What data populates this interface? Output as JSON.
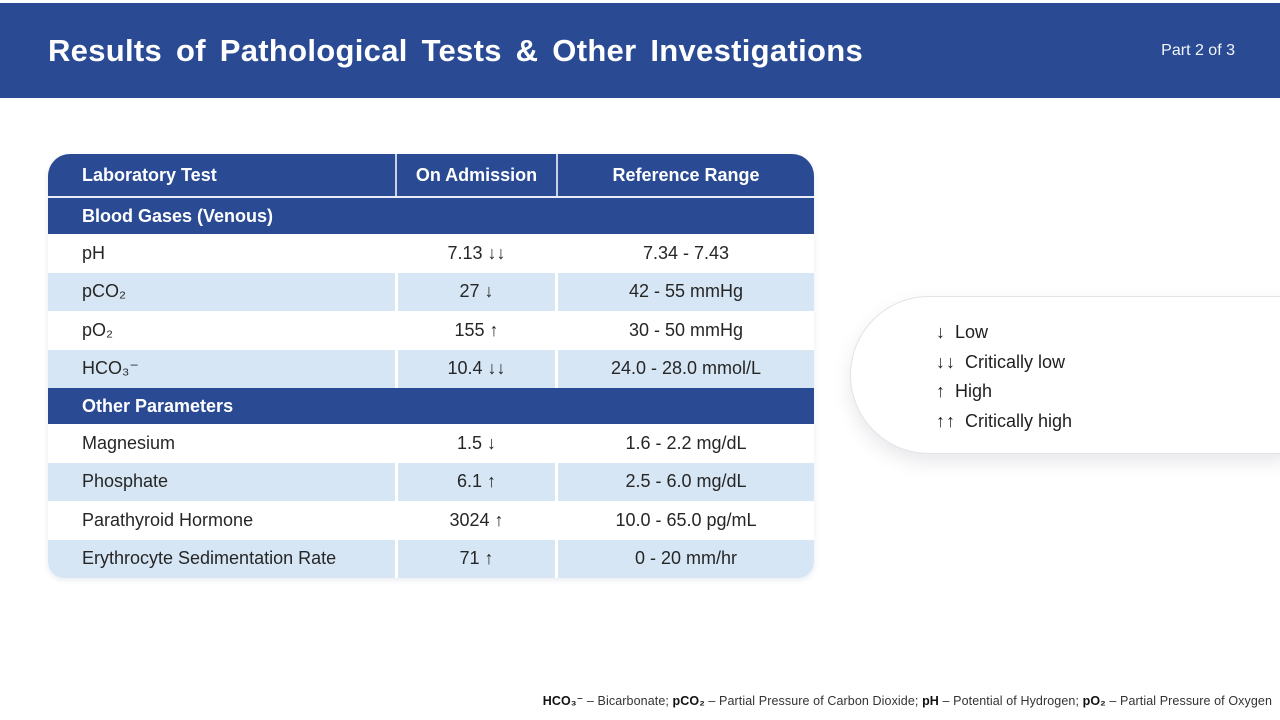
{
  "header": {
    "title": "Results of Pathological Tests & Other Investigations",
    "part_label": "Part 2 of 3"
  },
  "table": {
    "columns": [
      "Laboratory Test",
      "On Admission",
      "Reference Range"
    ],
    "rows": [
      {
        "kind": "section",
        "label": "Blood Gases (Venous)"
      },
      {
        "kind": "data",
        "label": "pH",
        "admission": "7.13 ↓↓",
        "range": "7.34 - 7.43"
      },
      {
        "kind": "data",
        "label": "pCO₂",
        "admission": "27 ↓",
        "range": "42 - 55 mmHg"
      },
      {
        "kind": "data",
        "label": "pO₂",
        "admission": "155 ↑",
        "range": "30 - 50 mmHg"
      },
      {
        "kind": "data",
        "label": "HCO₃⁻",
        "admission": "10.4 ↓↓",
        "range": "24.0 - 28.0 mmol/L"
      },
      {
        "kind": "section",
        "label": "Other Parameters"
      },
      {
        "kind": "data",
        "label": "Magnesium",
        "admission": "1.5 ↓",
        "range": "1.6 - 2.2 mg/dL"
      },
      {
        "kind": "data",
        "label": "Phosphate",
        "admission": "6.1 ↑",
        "range": "2.5 - 6.0 mg/dL"
      },
      {
        "kind": "data",
        "label": "Parathyroid Hormone",
        "admission": "3024 ↑",
        "range": "10.0 - 65.0 pg/mL"
      },
      {
        "kind": "data",
        "label": "Erythrocyte Sedimentation Rate",
        "admission": "71 ↑",
        "range": "0 - 20 mm/hr"
      }
    ]
  },
  "legend": {
    "items": [
      {
        "symbol": "↓",
        "label": "Low"
      },
      {
        "symbol": "↓↓",
        "label": "Critically low"
      },
      {
        "symbol": "↑",
        "label": "High"
      },
      {
        "symbol": "↑↑",
        "label": "Critically high"
      }
    ]
  },
  "footer": {
    "parts": [
      {
        "term": "HCO₃⁻",
        "rest": " – Bicarbonate; "
      },
      {
        "term": "pCO₂",
        "rest": " – Partial Pressure of Carbon Dioxide; "
      },
      {
        "term": "pH",
        "rest": " – Potential of Hydrogen; "
      },
      {
        "term": "pO₂",
        "rest": " – Partial Pressure of Oxygen"
      }
    ]
  },
  "colors": {
    "primary_blue": "#2a4b94",
    "row_light_blue": "#d6e6f4"
  }
}
